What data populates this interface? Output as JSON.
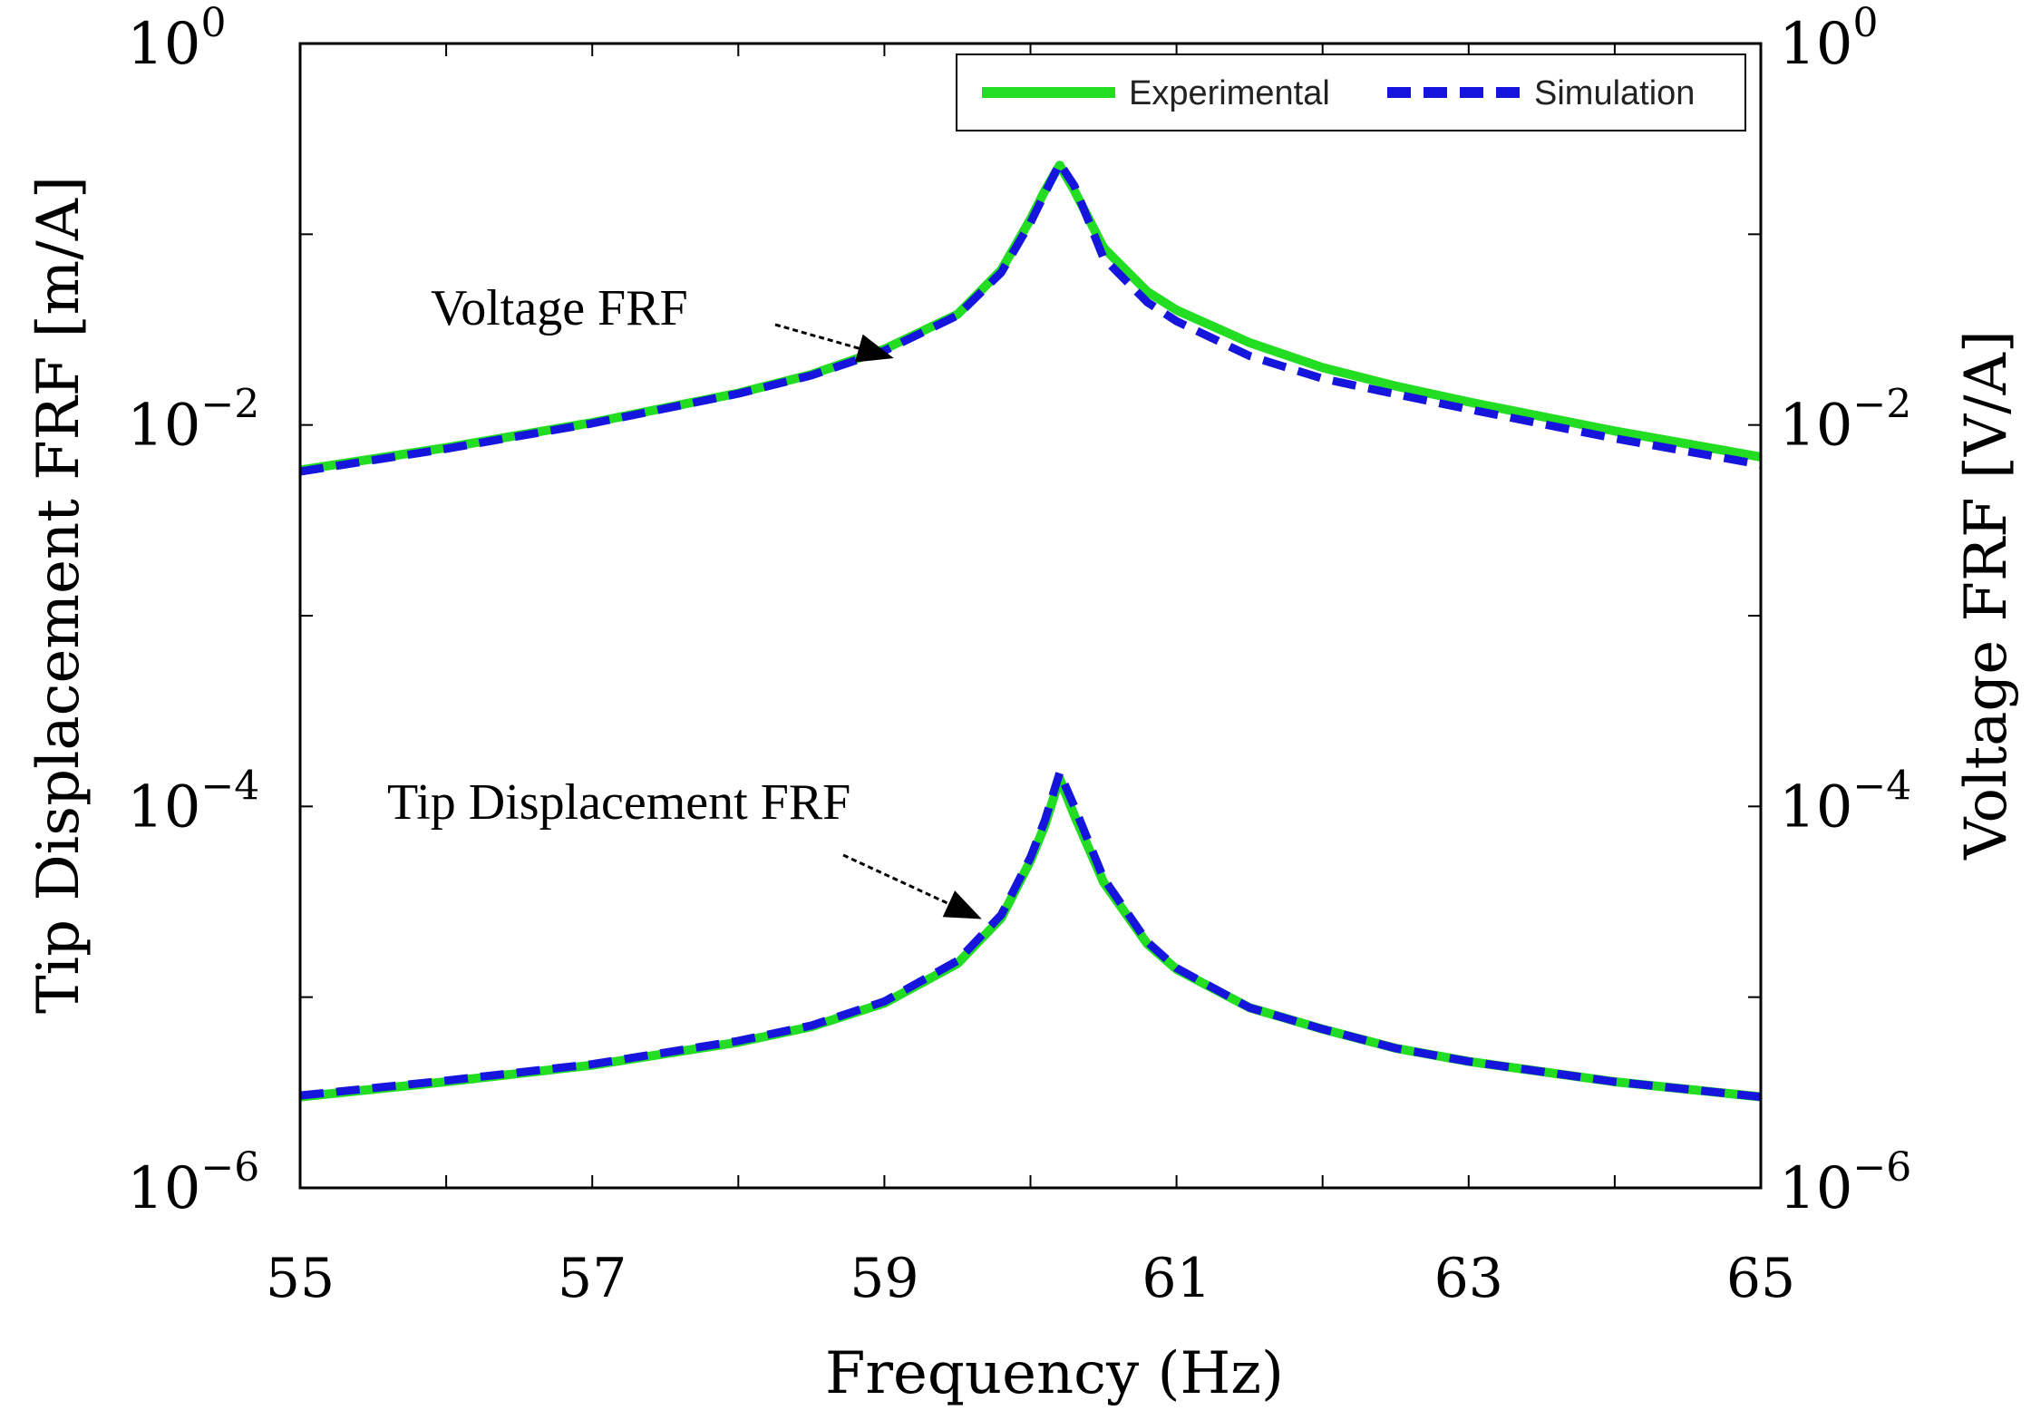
{
  "chart_data": {
    "type": "line",
    "xlabel": "Frequency (Hz)",
    "ylabel_left": "Tip Displacement FRF [m/A]",
    "ylabel_right": "Voltage FRF [V/A]",
    "xlim": [
      55,
      65
    ],
    "ylim": [
      1e-06,
      1
    ],
    "y_scale": "log",
    "grid": false,
    "legend_position": "top-right",
    "x_ticks": [
      "55",
      "57",
      "59",
      "61",
      "63",
      "65"
    ],
    "y_ticks": [
      {
        "base": "10",
        "exp": "0"
      },
      {
        "base": "10",
        "exp": "−2"
      },
      {
        "base": "10",
        "exp": "−4"
      },
      {
        "base": "10",
        "exp": "−6"
      }
    ],
    "x": [
      55.0,
      56.0,
      57.0,
      58.0,
      58.5,
      59.0,
      59.5,
      59.8,
      60.0,
      60.1,
      60.2,
      60.3,
      60.5,
      60.8,
      61.0,
      61.5,
      62.0,
      62.5,
      63.0,
      64.0,
      65.0
    ],
    "series": [
      {
        "name": "Experimental",
        "group": "Voltage FRF",
        "color": "#22dd22",
        "style": "solid",
        "values": [
          0.0058,
          0.0076,
          0.0103,
          0.0147,
          0.0184,
          0.025,
          0.038,
          0.065,
          0.12,
          0.17,
          0.23,
          0.17,
          0.085,
          0.05,
          0.04,
          0.027,
          0.02,
          0.016,
          0.0132,
          0.0093,
          0.0068
        ]
      },
      {
        "name": "Simulation",
        "group": "Voltage FRF",
        "color": "#1515dd",
        "style": "dashed",
        "values": [
          0.0057,
          0.0075,
          0.0102,
          0.0146,
          0.0182,
          0.0245,
          0.0375,
          0.063,
          0.115,
          0.165,
          0.235,
          0.18,
          0.075,
          0.044,
          0.035,
          0.023,
          0.0175,
          0.0145,
          0.0121,
          0.0085,
          0.0062
        ]
      },
      {
        "name": "Experimental",
        "group": "Tip Displacement FRF",
        "color": "#22dd22",
        "style": "solid",
        "values": [
          3e-06,
          3.6e-06,
          4.4e-06,
          5.8e-06,
          7e-06,
          9.3e-06,
          1.5e-05,
          2.6e-05,
          5.2e-05,
          8e-05,
          0.00014,
          9e-05,
          4e-05,
          1.9e-05,
          1.4e-05,
          8.8e-06,
          6.8e-06,
          5.4e-06,
          4.6e-06,
          3.6e-06,
          3e-06
        ]
      },
      {
        "name": "Simulation",
        "group": "Tip Displacement FRF",
        "color": "#1515dd",
        "style": "dashed",
        "values": [
          3.05e-06,
          3.65e-06,
          4.45e-06,
          5.9e-06,
          7.1e-06,
          9.5e-06,
          1.55e-05,
          2.7e-05,
          5.4e-05,
          8.5e-05,
          0.00015,
          0.0001,
          4.2e-05,
          1.95e-05,
          1.42e-05,
          8.8e-06,
          6.8e-06,
          5.4e-06,
          4.6e-06,
          3.6e-06,
          3e-06
        ]
      }
    ],
    "legend": [
      {
        "label": "Experimental",
        "color": "#22dd22",
        "style": "solid"
      },
      {
        "label": "Simulation",
        "color": "#1515dd",
        "style": "dashed"
      }
    ],
    "annotations": [
      {
        "text": "Voltage FRF",
        "points_to_x": 59.1,
        "points_to_y": 0.022
      },
      {
        "text": "Tip Displacement FRF",
        "points_to_x": 59.7,
        "points_to_y": 2.5e-05
      }
    ]
  }
}
